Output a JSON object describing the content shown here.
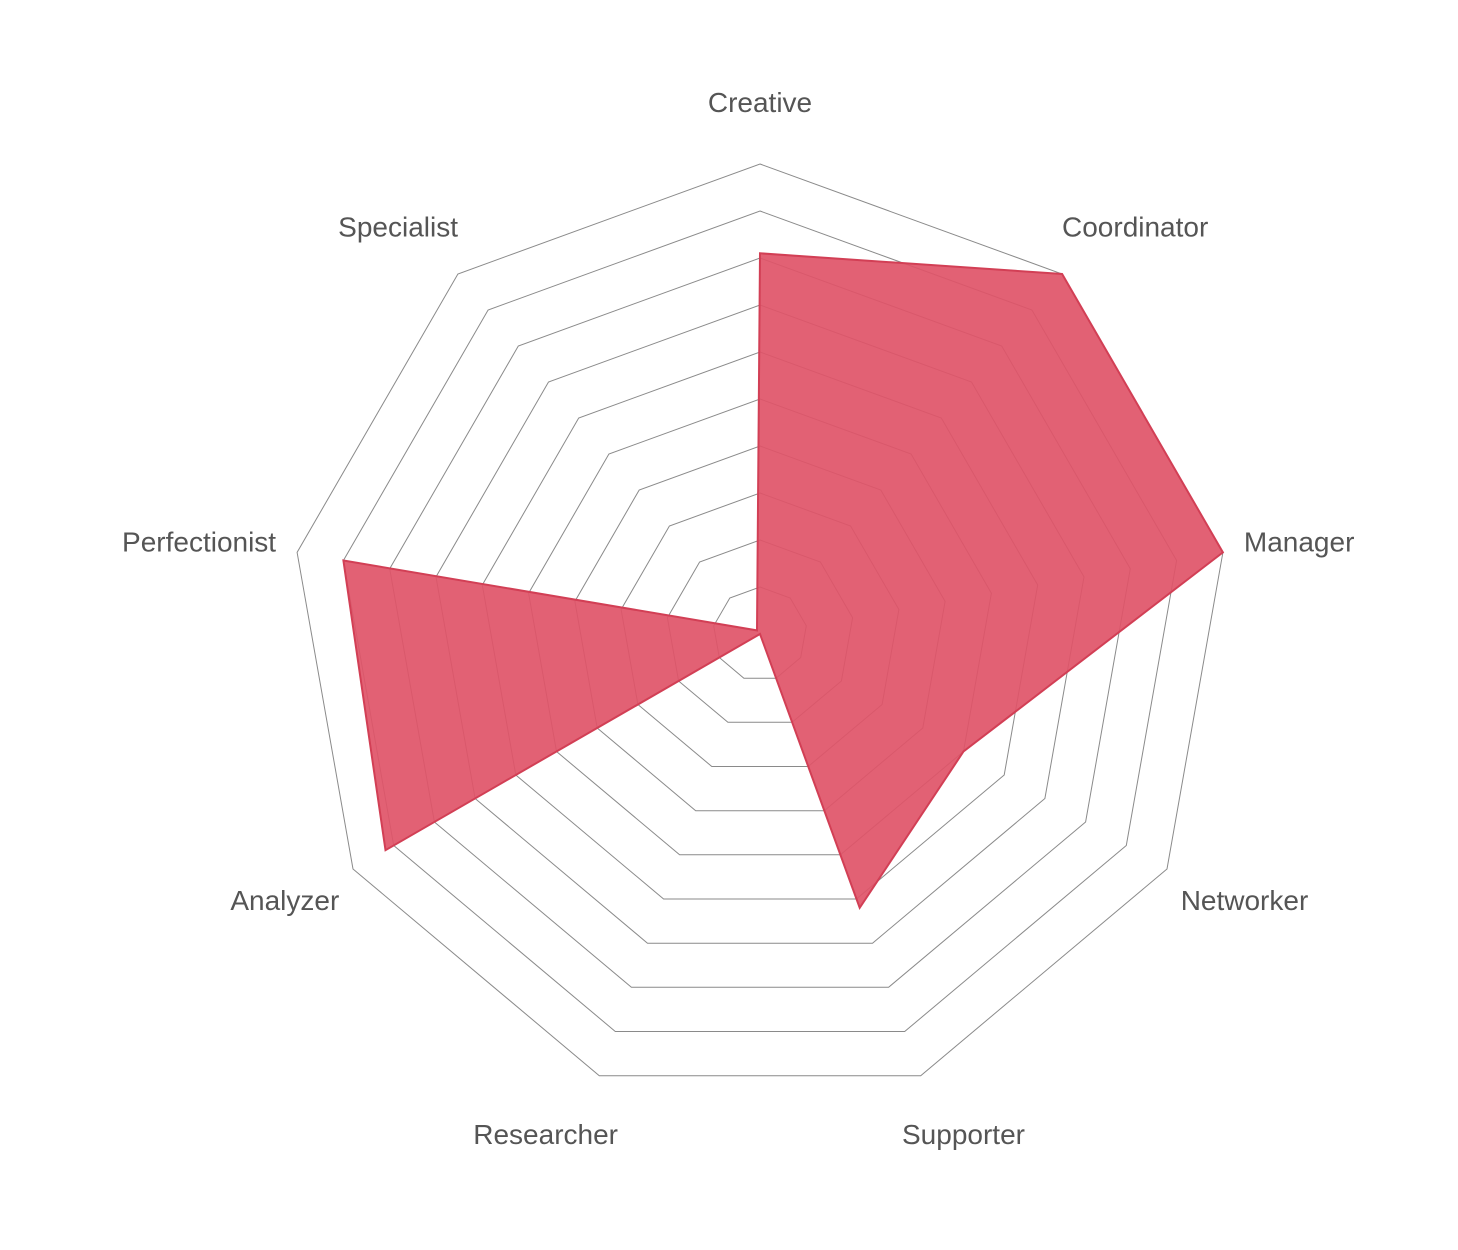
{
  "chart_data": {
    "type": "radar",
    "categories": [
      "Creative",
      "Coordinator",
      "Manager",
      "Networker",
      "Supporter",
      "Researcher",
      "Analyzer",
      "Perfectionist",
      "Specialist"
    ],
    "series": [
      {
        "values": [
          8.1,
          10,
          10,
          5,
          6.2,
          0,
          9.2,
          9.0,
          0.1
        ]
      }
    ],
    "range": [
      0,
      10
    ],
    "rings": 10,
    "grid": true,
    "colors": {
      "area": "#e05468",
      "stroke": "#d23f55",
      "grid": "#8a8a8a",
      "label": "#555555"
    }
  }
}
